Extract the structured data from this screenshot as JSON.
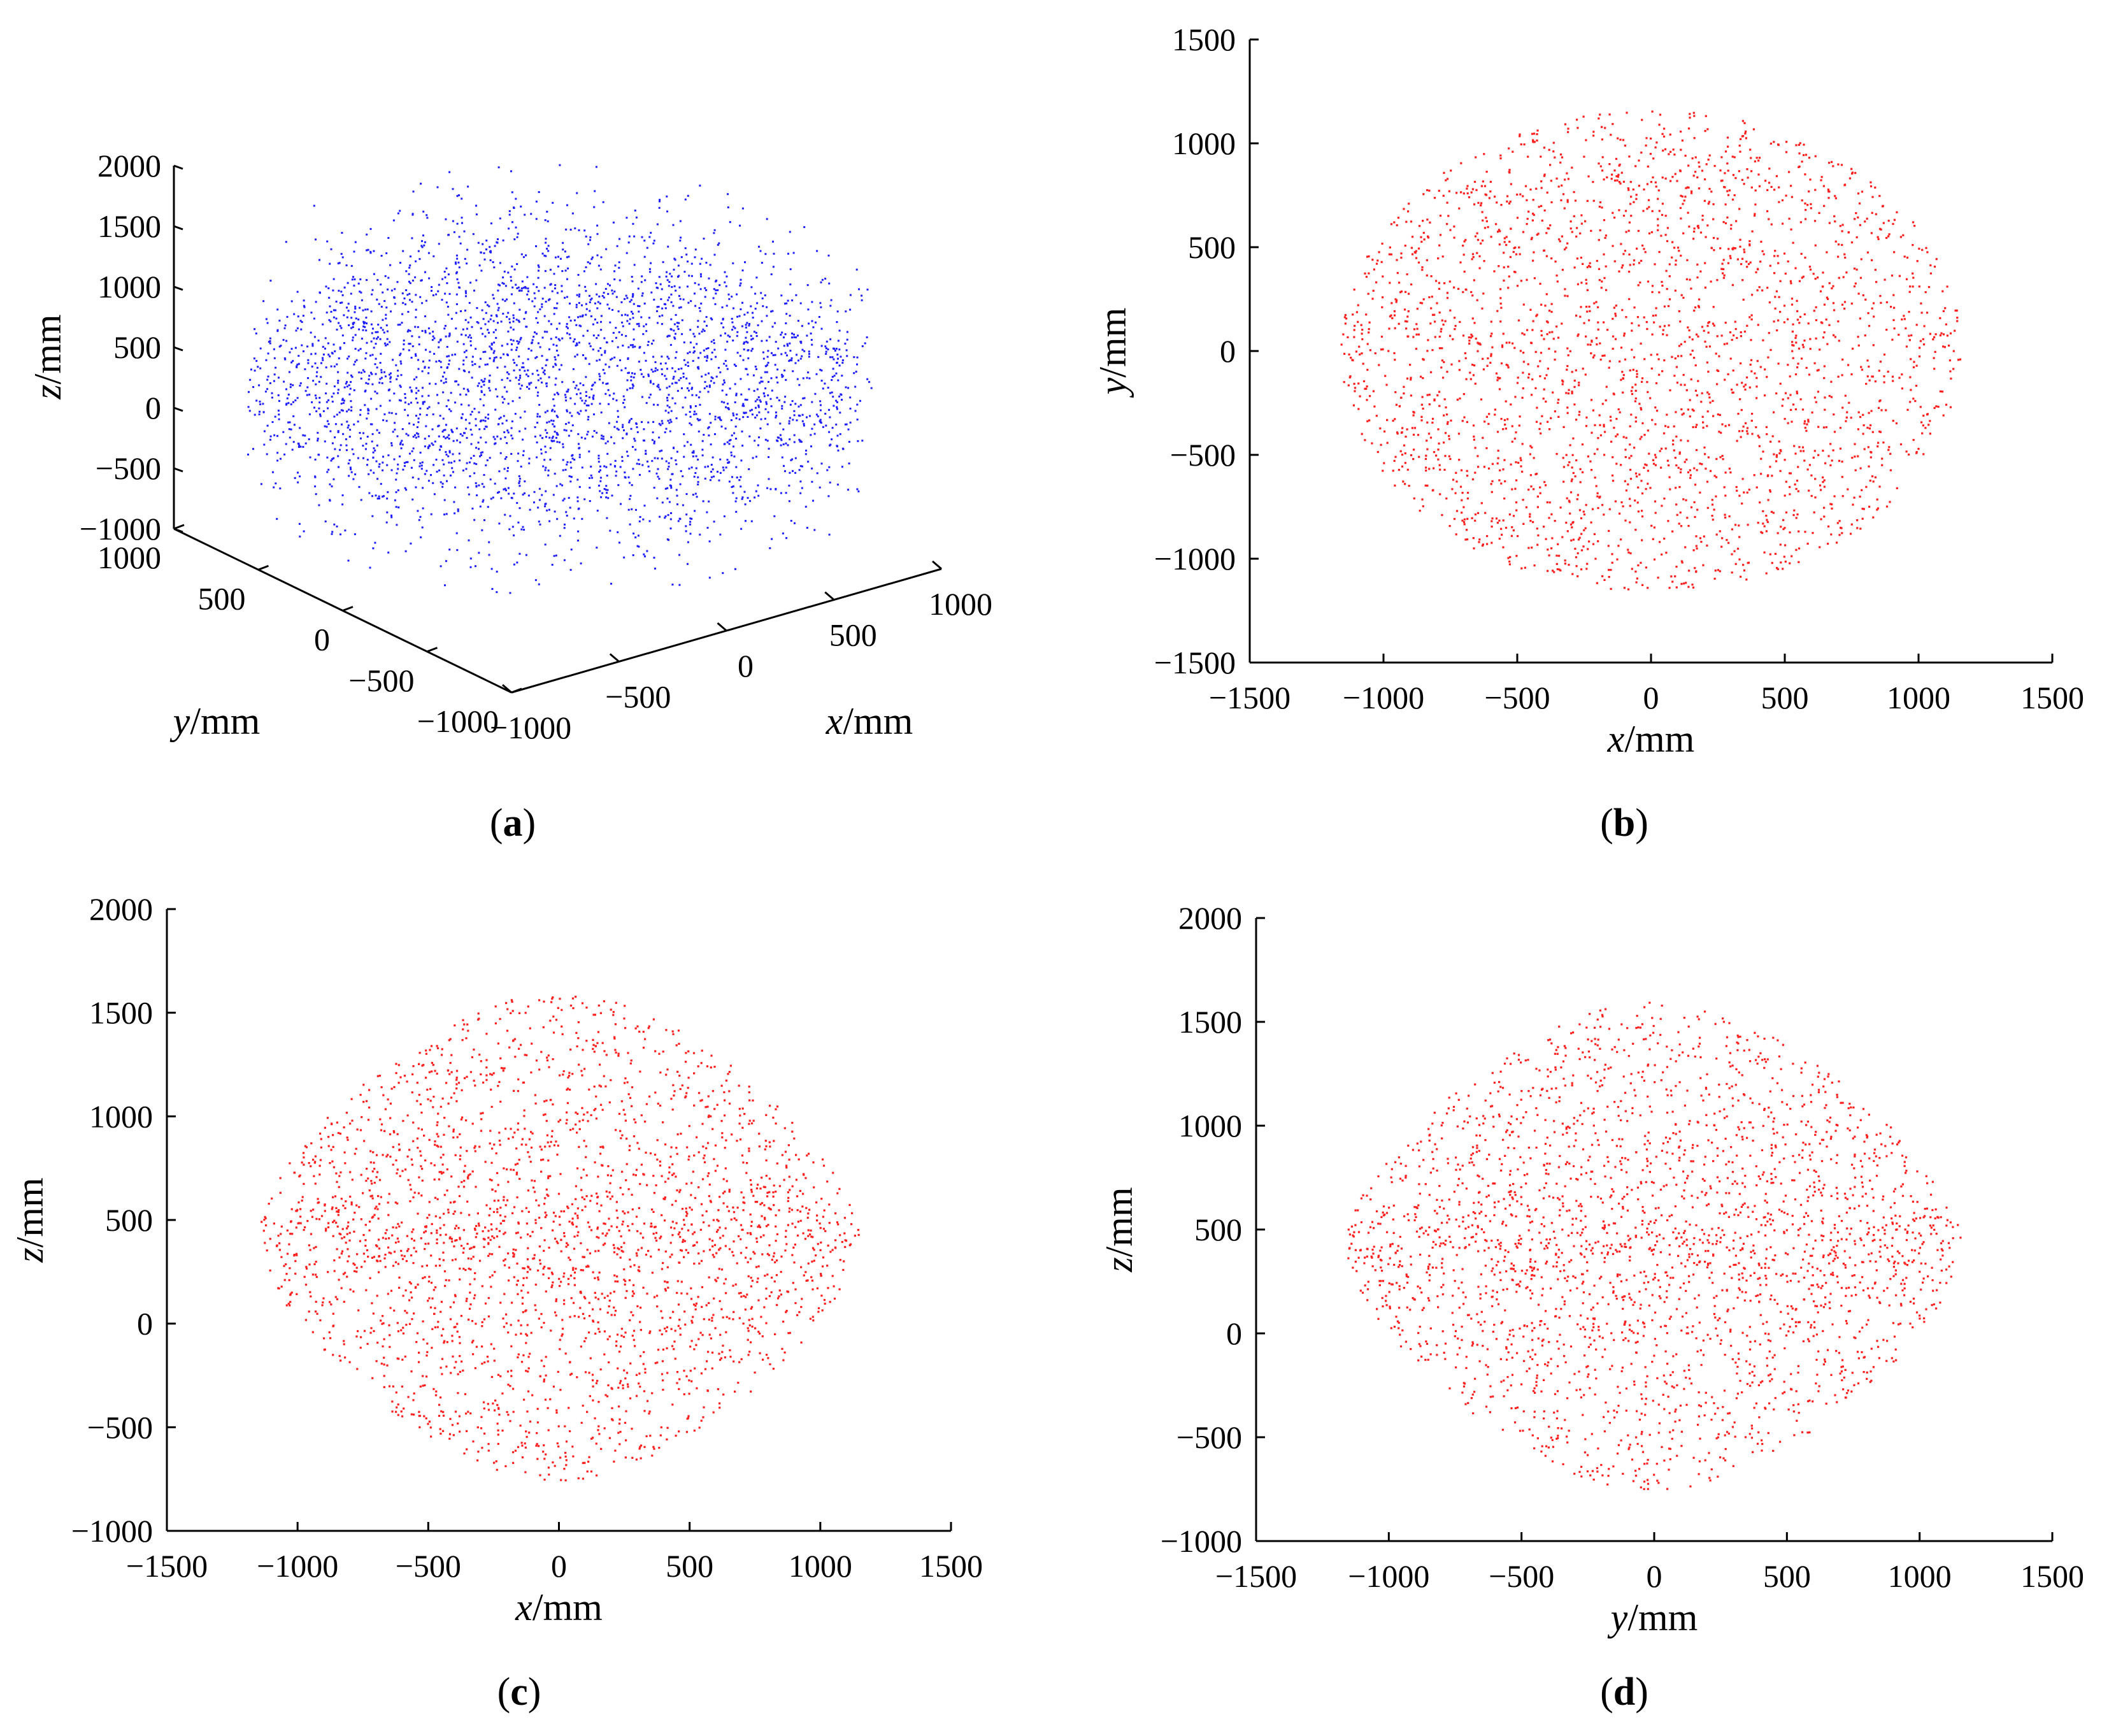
{
  "chart_data": [
    {
      "id": "a",
      "type": "scatter",
      "projection": "3d",
      "caption_letter": "a",
      "color": "#1f1fff",
      "point_count": 3200,
      "xlabel": {
        "var": "x",
        "unit": "/mm"
      },
      "ylabel": {
        "var": "y",
        "unit": "/mm"
      },
      "zlabel": {
        "var": "z",
        "unit": "/mm"
      },
      "xlim": [
        -1000,
        1000
      ],
      "ylim": [
        -1000,
        1000
      ],
      "zlim": [
        -1000,
        2000
      ],
      "xticks": [
        -1000,
        -500,
        0,
        500,
        1000
      ],
      "yticks": [
        -1000,
        -500,
        0,
        500,
        1000
      ],
      "zticks": [
        -1000,
        -500,
        0,
        500,
        1000,
        1500,
        2000
      ],
      "xtick_labels": [
        "−1000",
        "−500",
        "0",
        "500",
        "1000"
      ],
      "ytick_labels": [
        "−1000",
        "−500",
        "0",
        "500",
        "1000"
      ],
      "ztick_labels": [
        "−1000",
        "−500",
        "0",
        "500",
        "1000",
        "1500",
        "2000"
      ],
      "distribution": {
        "radius": 1150,
        "z_center": 400,
        "z_half_height": 1200
      }
    },
    {
      "id": "b",
      "type": "scatter",
      "caption_letter": "b",
      "color": "#ff2020",
      "point_count": 2600,
      "xlabel": {
        "var": "x",
        "unit": "/mm"
      },
      "ylabel": {
        "var": "y",
        "unit": "/mm"
      },
      "xlim": [
        -1500,
        1500
      ],
      "ylim": [
        -1500,
        1500
      ],
      "xticks": [
        -1500,
        -1000,
        -500,
        0,
        500,
        1000,
        1500
      ],
      "yticks": [
        -1500,
        -1000,
        -500,
        0,
        500,
        1000,
        1500
      ],
      "xtick_labels": [
        "−1500",
        "−1000",
        "−500",
        "0",
        "500",
        "1000",
        "1500"
      ],
      "ytick_labels": [
        "−1500",
        "−1000",
        "−500",
        "0",
        "500",
        "1000",
        "1500"
      ],
      "distribution": {
        "shape": "disk",
        "cx": 0,
        "cy": 0,
        "rx": 1160,
        "ry": 1160
      }
    },
    {
      "id": "c",
      "type": "scatter",
      "caption_letter": "c",
      "color": "#ff2020",
      "point_count": 2600,
      "xlabel": {
        "var": "x",
        "unit": "/mm"
      },
      "ylabel": {
        "var": "z",
        "unit": "/mm"
      },
      "xlim": [
        -1500,
        1500
      ],
      "ylim": [
        -1000,
        2000
      ],
      "xticks": [
        -1500,
        -1000,
        -500,
        0,
        500,
        1000,
        1500
      ],
      "yticks": [
        -1000,
        -500,
        0,
        500,
        1000,
        1500,
        2000
      ],
      "xtick_labels": [
        "−1500",
        "−1000",
        "−500",
        "0",
        "500",
        "1000",
        "1500"
      ],
      "ytick_labels": [
        "−1000",
        "−500",
        "0",
        "500",
        "1000",
        "1500",
        "2000"
      ],
      "distribution": {
        "shape": "ellipse",
        "cx": 0,
        "cy": 420,
        "rx": 1150,
        "ry": 1180
      }
    },
    {
      "id": "d",
      "type": "scatter",
      "caption_letter": "d",
      "color": "#ff2020",
      "point_count": 2600,
      "xlabel": {
        "var": "y",
        "unit": "/mm"
      },
      "ylabel": {
        "var": "z",
        "unit": "/mm"
      },
      "xlim": [
        -1500,
        1500
      ],
      "ylim": [
        -1000,
        2000
      ],
      "xticks": [
        -1500,
        -1000,
        -500,
        0,
        500,
        1000,
        1500
      ],
      "yticks": [
        -1000,
        -500,
        0,
        500,
        1000,
        1500,
        2000
      ],
      "xtick_labels": [
        "−1500",
        "−1000",
        "−500",
        "0",
        "500",
        "1000",
        "1500"
      ],
      "ytick_labels": [
        "−1000",
        "−500",
        "0",
        "500",
        "1000",
        "1500",
        "2000"
      ],
      "distribution": {
        "shape": "ellipse",
        "cx": 0,
        "cy": 420,
        "rx": 1160,
        "ry": 1180
      }
    }
  ]
}
